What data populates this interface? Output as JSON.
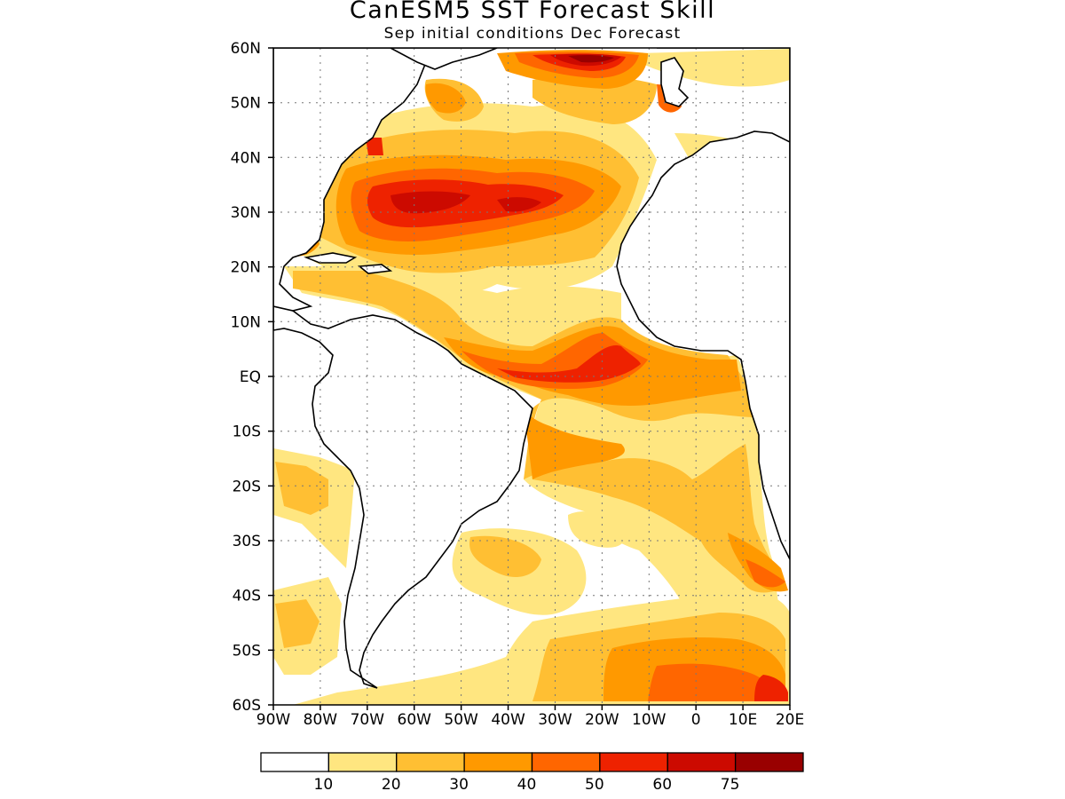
{
  "title": "CanESM5 SST Forecast Skill",
  "subtitle": "Sep initial conditions  Dec Forecast",
  "map": {
    "region": "Atlantic Ocean",
    "lon_range": [
      -90,
      20
    ],
    "lat_range": [
      -60,
      60
    ],
    "grid_lines": "dotted",
    "lat_ticks": [
      "60N",
      "50N",
      "40N",
      "30N",
      "20N",
      "10N",
      "EQ",
      "10S",
      "20S",
      "30S",
      "40S",
      "50S",
      "60S"
    ],
    "lon_ticks": [
      "90W",
      "80W",
      "70W",
      "60W",
      "50W",
      "40W",
      "30W",
      "20W",
      "10W",
      "0",
      "10E",
      "20E"
    ],
    "land_color": "#ffffff",
    "coast_color": "#000000"
  },
  "colorbar": {
    "colors": [
      "#ffffff",
      "#ffe680",
      "#ffbf33",
      "#ff9900",
      "#ff6600",
      "#ee2200",
      "#cc0a00",
      "#990000"
    ],
    "labels": [
      "10",
      "20",
      "30",
      "40",
      "50",
      "60",
      "75"
    ]
  }
}
